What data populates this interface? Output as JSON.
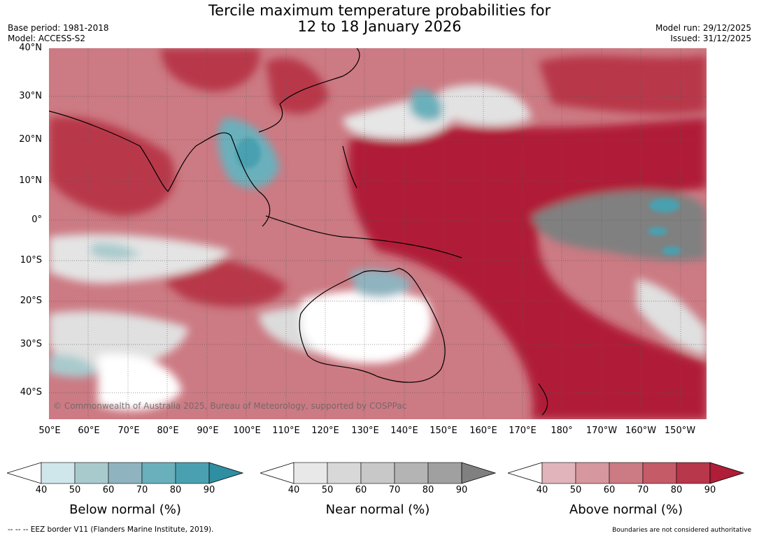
{
  "title_line1": "Tercile maximum temperature probabilities for",
  "title_line2": "12 to 18 January 2026",
  "meta_left": [
    "Base period: 1981-2018",
    "Model: ACCESS-S2"
  ],
  "meta_right": [
    "Model run: 29/12/2025",
    "Issued: 31/12/2025"
  ],
  "copyright": "© Commonwealth of Australia 2025, Bureau of Meteorology, supported by COSPPac",
  "lat_labels": [
    "40°N",
    "30°N",
    "20°N",
    "10°N",
    "0°",
    "10°S",
    "20°S",
    "30°S",
    "40°S"
  ],
  "lon_labels": [
    "50°E",
    "60°E",
    "70°E",
    "80°E",
    "90°E",
    "100°E",
    "110°E",
    "120°E",
    "130°E",
    "140°E",
    "150°E",
    "160°E",
    "170°E",
    "180°",
    "170°W",
    "160°W",
    "150°W"
  ],
  "colorbars": [
    {
      "label": "Below normal (%)",
      "ticks": [
        "40",
        "50",
        "60",
        "70",
        "80",
        "90"
      ],
      "colors": [
        "#cfe6ea",
        "#a9cacd",
        "#8fb4c0",
        "#6ab0bc",
        "#4aa0b0",
        "#2e8fa2"
      ]
    },
    {
      "label": "Near normal (%)",
      "ticks": [
        "40",
        "50",
        "60",
        "70",
        "80",
        "90"
      ],
      "colors": [
        "#e8e8e8",
        "#d8d8d8",
        "#c8c8c8",
        "#b4b4b4",
        "#a0a0a0",
        "#808080"
      ]
    },
    {
      "label": "Above normal (%)",
      "ticks": [
        "40",
        "50",
        "60",
        "70",
        "80",
        "90"
      ],
      "colors": [
        "#e0b4ba",
        "#d6979f",
        "#cc7a83",
        "#c55b67",
        "#b8374a",
        "#b01d38"
      ]
    }
  ],
  "footer_left": "--  --  -- EEZ border V11 (Flanders Marine Institute, 2019).",
  "footer_right": "Boundaries are not considered authoritative",
  "colors": {
    "above_strong": "#b01d38",
    "above_mid": "#cc7a83",
    "above_light": "#e0b4ba",
    "near_light": "#e4e4e4",
    "near_dark": "#808080",
    "below_mid": "#6ab0bc",
    "below_strong": "#2e8fa2",
    "land_outline": "#000000"
  }
}
